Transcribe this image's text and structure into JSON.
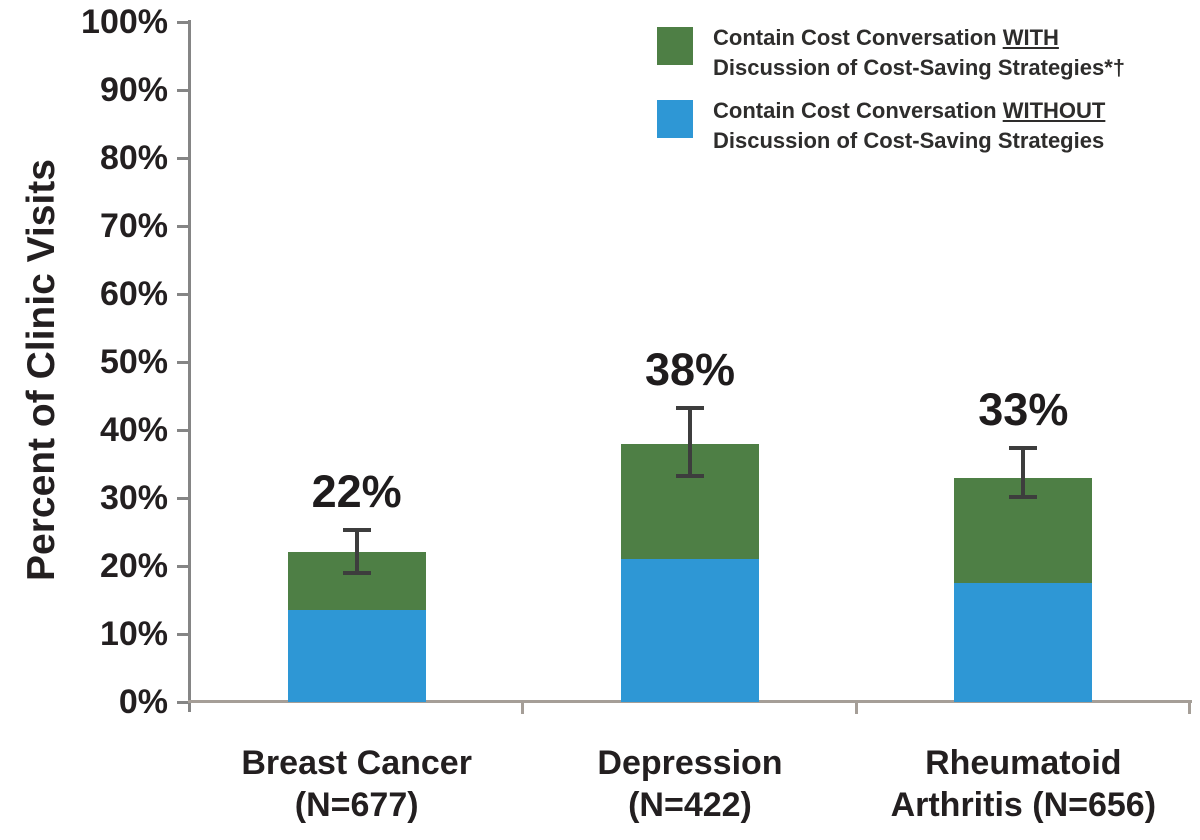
{
  "chart_data": {
    "type": "bar",
    "stacked": true,
    "title": "",
    "ylabel": "Percent of Clinic Visits",
    "ylim": [
      0,
      100
    ],
    "ytick_step": 10,
    "ytick_labels": [
      "0%",
      "10%",
      "20%",
      "30%",
      "40%",
      "50%",
      "60%",
      "70%",
      "80%",
      "90%",
      "100%"
    ],
    "grid": false,
    "legend_position": "top-right",
    "categories": [
      "Breast Cancer (N=677)",
      "Depression (N=422)",
      "Rheumatoid Arthritis (N=656)"
    ],
    "category_label_lines": [
      [
        "Breast Cancer",
        "(N=677)"
      ],
      [
        "Depression",
        "(N=422)"
      ],
      [
        "Rheumatoid",
        "Arthritis (N=656)"
      ]
    ],
    "series": [
      {
        "name": "Contain Cost Conversation WITHOUT Discussion of Cost-Saving Strategies",
        "color": "#2e97d5",
        "stack_position": "bottom",
        "values": [
          13.5,
          21.0,
          17.5
        ]
      },
      {
        "name": "Contain Cost Conversation WITH Discussion of Cost-Saving Strategies*†",
        "color": "#4e7f45",
        "stack_position": "top",
        "values": [
          8.5,
          17.0,
          15.5
        ]
      }
    ],
    "totals": [
      22,
      38,
      33
    ],
    "total_labels": [
      "22%",
      "38%",
      "33%"
    ],
    "error_bars": {
      "low": [
        19.0,
        33.2,
        30.2
      ],
      "high": [
        25.3,
        43.3,
        37.4
      ]
    }
  },
  "legend": {
    "items": [
      {
        "swatch_color": "#4e7f45",
        "line1_prefix": "Contain Cost Conversation ",
        "line1_underlined": "WITH",
        "line2": "Discussion of Cost-Saving Strategies*†"
      },
      {
        "swatch_color": "#2e97d5",
        "line1_prefix": "Contain Cost Conversation ",
        "line1_underlined": "WITHOUT",
        "line2": "Discussion of Cost-Saving Strategies"
      }
    ]
  },
  "colors": {
    "with_green": "#4e7f45",
    "without_blue": "#2e97d5",
    "x_axis_line": "#a59e97",
    "y_axis_line": "#858585",
    "error_bar": "#3d3d3d",
    "text": "#231f20"
  }
}
